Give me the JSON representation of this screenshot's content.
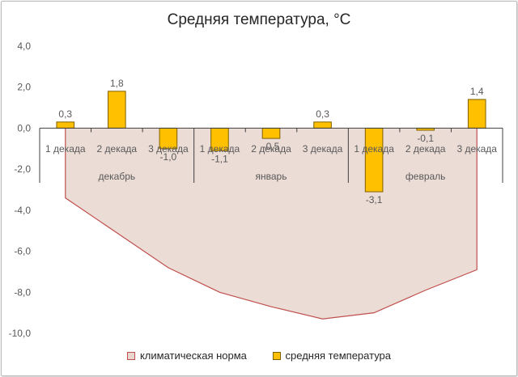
{
  "chart_data": {
    "type": "bar",
    "title": "Средняя температура, °С",
    "y_tick_labels": [
      "4,0",
      "2,0",
      "0,0",
      "-2,0",
      "-4,0",
      "-6,0",
      "-8,0",
      "-10,0"
    ],
    "ylim": [
      -10,
      4
    ],
    "grid": false,
    "legend_position": "bottom",
    "categories": [
      "1 декада",
      "2 декада",
      "3 декада",
      "1 декада",
      "2 декада",
      "3 декада",
      "1 декада",
      "2 декада",
      "3 декада"
    ],
    "groups": [
      "декабрь",
      "январь",
      "февраль"
    ],
    "series": [
      {
        "name": "климатическая норма",
        "kind": "area",
        "values": [
          -3.4,
          -5.1,
          -6.8,
          -8.0,
          -8.7,
          -9.3,
          -9.0,
          -7.9,
          -6.9
        ],
        "fill": "#e8d6cf",
        "stroke": "#c0504d"
      },
      {
        "name": "средняя температура",
        "kind": "bar",
        "values": [
          0.3,
          1.8,
          -1.0,
          -1.1,
          -0.5,
          0.3,
          -3.1,
          -0.1,
          1.4
        ],
        "labels": [
          "0,3",
          "1,8",
          "-1,0",
          "-1,1",
          "-0,5",
          "0,3",
          "-3,1",
          "-0,1",
          "1,4"
        ],
        "fill": "#ffc000",
        "stroke": "#7f6000"
      }
    ]
  }
}
